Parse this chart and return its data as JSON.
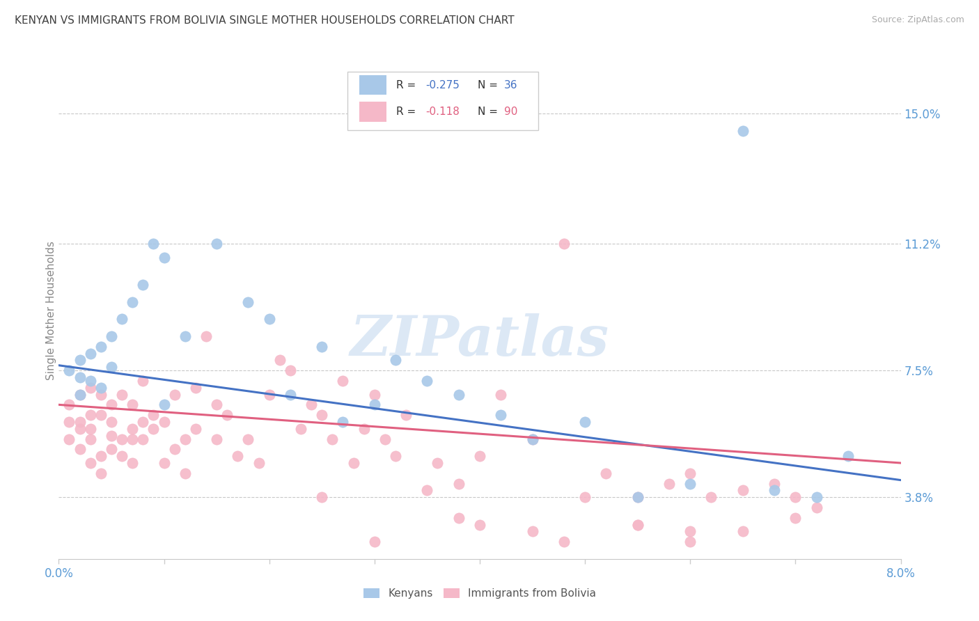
{
  "title": "KENYAN VS IMMIGRANTS FROM BOLIVIA SINGLE MOTHER HOUSEHOLDS CORRELATION CHART",
  "source": "Source: ZipAtlas.com",
  "ylabel": "Single Mother Households",
  "ytick_labels": [
    "3.8%",
    "7.5%",
    "11.2%",
    "15.0%"
  ],
  "ytick_values": [
    0.038,
    0.075,
    0.112,
    0.15
  ],
  "xmin": 0.0,
  "xmax": 0.08,
  "ymin": 0.02,
  "ymax": 0.165,
  "color_kenyan": "#a8c8e8",
  "color_bolivia": "#f5b8c8",
  "color_line_kenyan": "#4472c4",
  "color_line_bolivia": "#e06080",
  "color_axis_labels": "#5b9bd5",
  "color_title": "#404040",
  "watermark_text": "ZIPatlas",
  "watermark_color": "#dce8f5",
  "legend_label_kenyan": "Kenyans",
  "legend_label_bolivia": "Immigrants from Bolivia",
  "kenyan_x": [
    0.001,
    0.002,
    0.002,
    0.002,
    0.003,
    0.003,
    0.004,
    0.004,
    0.005,
    0.005,
    0.006,
    0.007,
    0.008,
    0.009,
    0.01,
    0.01,
    0.012,
    0.015,
    0.018,
    0.02,
    0.022,
    0.025,
    0.027,
    0.03,
    0.032,
    0.035,
    0.038,
    0.042,
    0.045,
    0.05,
    0.055,
    0.06,
    0.065,
    0.068,
    0.072,
    0.075
  ],
  "kenyan_y": [
    0.075,
    0.073,
    0.078,
    0.068,
    0.08,
    0.072,
    0.07,
    0.082,
    0.076,
    0.085,
    0.09,
    0.095,
    0.1,
    0.112,
    0.108,
    0.065,
    0.085,
    0.112,
    0.095,
    0.09,
    0.068,
    0.082,
    0.06,
    0.065,
    0.078,
    0.072,
    0.068,
    0.062,
    0.055,
    0.06,
    0.038,
    0.042,
    0.145,
    0.04,
    0.038,
    0.05
  ],
  "bolivia_x": [
    0.001,
    0.001,
    0.001,
    0.002,
    0.002,
    0.002,
    0.002,
    0.003,
    0.003,
    0.003,
    0.003,
    0.003,
    0.004,
    0.004,
    0.004,
    0.004,
    0.005,
    0.005,
    0.005,
    0.005,
    0.006,
    0.006,
    0.006,
    0.007,
    0.007,
    0.007,
    0.007,
    0.008,
    0.008,
    0.008,
    0.009,
    0.009,
    0.01,
    0.01,
    0.011,
    0.011,
    0.012,
    0.012,
    0.013,
    0.013,
    0.014,
    0.015,
    0.015,
    0.016,
    0.017,
    0.018,
    0.019,
    0.02,
    0.021,
    0.022,
    0.023,
    0.024,
    0.025,
    0.026,
    0.027,
    0.028,
    0.029,
    0.03,
    0.031,
    0.032,
    0.033,
    0.035,
    0.036,
    0.038,
    0.04,
    0.042,
    0.045,
    0.048,
    0.05,
    0.052,
    0.055,
    0.058,
    0.06,
    0.062,
    0.065,
    0.068,
    0.07,
    0.072,
    0.055,
    0.06,
    0.025,
    0.03,
    0.038,
    0.04,
    0.045,
    0.048,
    0.055,
    0.06,
    0.065,
    0.07
  ],
  "bolivia_y": [
    0.06,
    0.065,
    0.055,
    0.052,
    0.06,
    0.068,
    0.058,
    0.048,
    0.055,
    0.062,
    0.058,
    0.07,
    0.05,
    0.045,
    0.062,
    0.068,
    0.052,
    0.056,
    0.06,
    0.065,
    0.068,
    0.055,
    0.05,
    0.058,
    0.065,
    0.048,
    0.055,
    0.072,
    0.055,
    0.06,
    0.062,
    0.058,
    0.06,
    0.048,
    0.068,
    0.052,
    0.055,
    0.045,
    0.058,
    0.07,
    0.085,
    0.065,
    0.055,
    0.062,
    0.05,
    0.055,
    0.048,
    0.068,
    0.078,
    0.075,
    0.058,
    0.065,
    0.062,
    0.055,
    0.072,
    0.048,
    0.058,
    0.068,
    0.055,
    0.05,
    0.062,
    0.04,
    0.048,
    0.042,
    0.05,
    0.068,
    0.055,
    0.112,
    0.038,
    0.045,
    0.038,
    0.042,
    0.045,
    0.038,
    0.04,
    0.042,
    0.038,
    0.035,
    0.03,
    0.028,
    0.038,
    0.025,
    0.032,
    0.03,
    0.028,
    0.025,
    0.03,
    0.025,
    0.028,
    0.032
  ],
  "kenyan_line_x0": 0.0,
  "kenyan_line_y0": 0.0765,
  "kenyan_line_x1": 0.08,
  "kenyan_line_y1": 0.043,
  "bolivia_line_x0": 0.0,
  "bolivia_line_y0": 0.065,
  "bolivia_line_x1": 0.08,
  "bolivia_line_y1": 0.048
}
